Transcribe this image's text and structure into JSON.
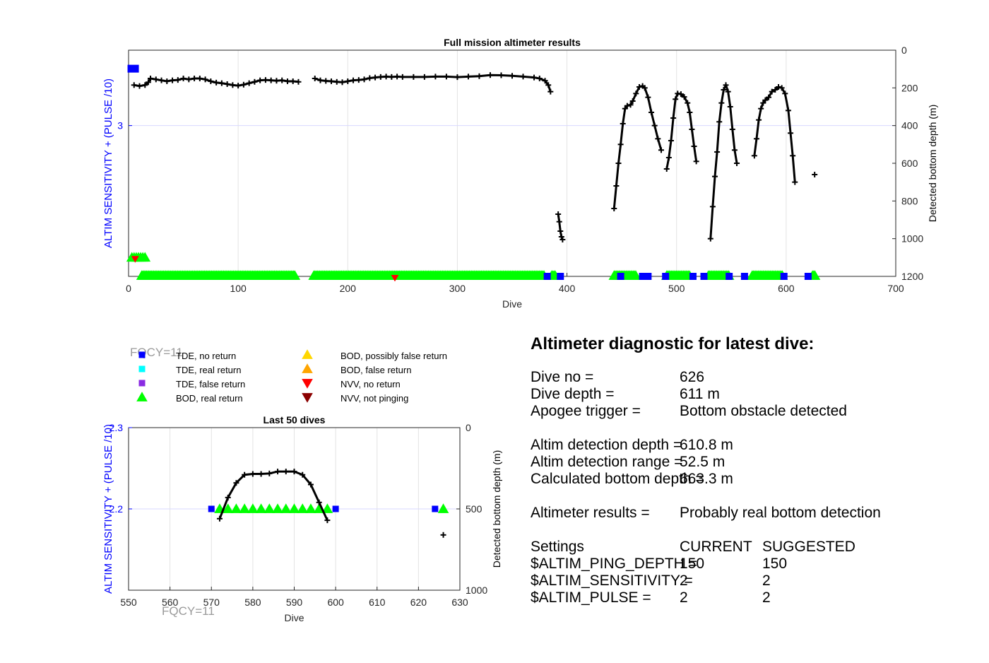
{
  "chart_data": [
    {
      "type": "scatter",
      "title": "Full mission altimeter results",
      "xlabel": "Dive",
      "ylabel_left": "ALTIM SENSITIVITY + (PULSE /10)",
      "ylabel_right": "Detected bottom depth (m)",
      "xlim": [
        0,
        700
      ],
      "xticks": [
        "0",
        "100",
        "200",
        "300",
        "400",
        "500",
        "600",
        "700"
      ],
      "ylim_left": [
        2.2,
        3.4
      ],
      "yticks_left": [
        "3"
      ],
      "ylim_right": [
        0,
        1200
      ],
      "yticks_right": [
        "0",
        "200",
        "400",
        "600",
        "800",
        "1000",
        "1200"
      ],
      "right_axis_reversed": true,
      "grid": true,
      "bottom_depth_series": [
        [
          [
            5,
            185
          ],
          [
            10,
            190
          ],
          [
            15,
            185
          ],
          [
            18,
            170
          ],
          [
            20,
            150
          ],
          [
            25,
            155
          ],
          [
            30,
            160
          ],
          [
            35,
            165
          ],
          [
            40,
            160
          ],
          [
            45,
            158
          ],
          [
            50,
            150
          ],
          [
            55,
            155
          ],
          [
            60,
            150
          ],
          [
            65,
            150
          ],
          [
            70,
            155
          ],
          [
            75,
            165
          ],
          [
            80,
            172
          ],
          [
            85,
            175
          ],
          [
            90,
            180
          ],
          [
            95,
            185
          ],
          [
            100,
            188
          ],
          [
            105,
            183
          ],
          [
            110,
            175
          ],
          [
            115,
            168
          ],
          [
            120,
            160
          ],
          [
            125,
            158
          ],
          [
            130,
            160
          ],
          [
            135,
            162
          ],
          [
            140,
            160
          ],
          [
            145,
            165
          ],
          [
            150,
            165
          ],
          [
            155,
            168
          ]
        ],
        [
          [
            170,
            150
          ],
          [
            175,
            160
          ],
          [
            180,
            163
          ],
          [
            185,
            165
          ],
          [
            190,
            168
          ],
          [
            195,
            170
          ],
          [
            200,
            165
          ],
          [
            205,
            160
          ],
          [
            210,
            158
          ],
          [
            215,
            155
          ],
          [
            220,
            148
          ],
          [
            225,
            145
          ],
          [
            230,
            142
          ],
          [
            235,
            140
          ],
          [
            240,
            142
          ],
          [
            245,
            140
          ],
          [
            250,
            142
          ],
          [
            260,
            142
          ],
          [
            270,
            142
          ],
          [
            280,
            140
          ],
          [
            290,
            140
          ],
          [
            300,
            143
          ],
          [
            310,
            140
          ],
          [
            320,
            138
          ],
          [
            330,
            132
          ],
          [
            340,
            133
          ],
          [
            350,
            136
          ],
          [
            360,
            140
          ],
          [
            370,
            145
          ],
          [
            375,
            150
          ],
          [
            380,
            162
          ],
          [
            383,
            185
          ],
          [
            385,
            220
          ]
        ],
        [
          [
            392,
            870
          ],
          [
            393,
            910
          ],
          [
            394,
            960
          ],
          [
            395,
            990
          ],
          [
            396,
            1005
          ]
        ],
        [
          [
            443,
            840
          ],
          [
            445,
            720
          ],
          [
            447,
            600
          ],
          [
            449,
            500
          ],
          [
            451,
            390
          ],
          [
            453,
            310
          ],
          [
            455,
            295
          ],
          [
            458,
            290
          ],
          [
            460,
            270
          ],
          [
            463,
            230
          ],
          [
            466,
            195
          ],
          [
            469,
            190
          ],
          [
            471,
            200
          ],
          [
            474,
            250
          ],
          [
            477,
            330
          ],
          [
            480,
            400
          ],
          [
            483,
            470
          ],
          [
            486,
            530
          ]
        ],
        [
          [
            491,
            630
          ],
          [
            493,
            570
          ],
          [
            495,
            480
          ],
          [
            497,
            360
          ],
          [
            499,
            260
          ],
          [
            501,
            230
          ],
          [
            504,
            233
          ],
          [
            507,
            248
          ],
          [
            510,
            280
          ],
          [
            512,
            330
          ],
          [
            514,
            420
          ],
          [
            516,
            510
          ],
          [
            518,
            590
          ]
        ],
        [
          [
            531,
            1000
          ],
          [
            533,
            830
          ],
          [
            535,
            670
          ],
          [
            537,
            540
          ],
          [
            539,
            380
          ],
          [
            541,
            280
          ],
          [
            543,
            210
          ],
          [
            545,
            185
          ],
          [
            547,
            220
          ],
          [
            549,
            300
          ],
          [
            551,
            420
          ],
          [
            553,
            530
          ],
          [
            555,
            600
          ]
        ],
        [
          [
            571,
            560
          ],
          [
            573,
            470
          ],
          [
            575,
            370
          ],
          [
            577,
            310
          ],
          [
            579,
            280
          ],
          [
            581,
            265
          ],
          [
            584,
            250
          ],
          [
            587,
            220
          ],
          [
            590,
            210
          ],
          [
            593,
            195
          ],
          [
            596,
            200
          ],
          [
            599,
            230
          ],
          [
            602,
            320
          ],
          [
            604,
            440
          ],
          [
            606,
            560
          ],
          [
            608,
            700
          ]
        ],
        [
          [
            626,
            660
          ]
        ]
      ],
      "series": [
        {
          "name": "TDE, no return",
          "symbol": "square",
          "color": "#0000ff",
          "points": [
            [
              1,
              3.3
            ],
            [
              382,
              2.2
            ],
            [
              394,
              2.2
            ],
            [
              449,
              2.2
            ],
            [
              469,
              2.2
            ],
            [
              474,
              2.2
            ],
            [
              490,
              2.2
            ],
            [
              515,
              2.2
            ],
            [
              525,
              2.2
            ],
            [
              548,
              2.2
            ],
            [
              562,
              2.2
            ],
            [
              598,
              2.2
            ],
            [
              620,
              2.2
            ]
          ]
        },
        {
          "name": "BOD, real return",
          "symbol": "triangle",
          "color": "#00ff00",
          "dive_ranges": [
            [
              12,
              152
            ],
            [
              169,
              380
            ],
            [
              386,
              390
            ],
            [
              443,
              463
            ],
            [
              491,
              512
            ],
            [
              529,
              548
            ],
            [
              569,
              597
            ],
            [
              624,
              627
            ]
          ],
          "early_points": [
            [
              3,
              2.3
            ],
            [
              5,
              2.3
            ],
            [
              7,
              2.3
            ],
            [
              9,
              2.3
            ],
            [
              11,
              2.3
            ],
            [
              13,
              2.3
            ],
            [
              15,
              2.3
            ]
          ]
        },
        {
          "name": "NVV, no return",
          "symbol": "triangle-down",
          "color": "#ff0000",
          "points": [
            [
              6,
              2.3
            ],
            [
              243,
              2.2
            ]
          ]
        }
      ]
    },
    {
      "type": "scatter",
      "title": "Last 50 dives",
      "xlabel": "Dive",
      "ylabel_left": "ALTIM SENSITIVITY + (PULSE /10)",
      "ylabel_right": "Detected bottom depth (m)",
      "xlim": [
        550,
        630
      ],
      "xticks": [
        "550",
        "560",
        "570",
        "580",
        "590",
        "600",
        "610",
        "620",
        "630"
      ],
      "ylim_left": [
        2.1,
        2.3
      ],
      "yticks_left": [
        "2.3",
        "2.2"
      ],
      "ylim_right": [
        0,
        1000
      ],
      "yticks_right": [
        "0",
        "500",
        "1000"
      ],
      "right_axis_reversed": true,
      "grid": true,
      "bottom_depth_series": [
        [
          [
            572,
            560
          ],
          [
            574,
            430
          ],
          [
            576,
            340
          ],
          [
            578,
            290
          ],
          [
            580,
            285
          ],
          [
            582,
            285
          ],
          [
            584,
            282
          ],
          [
            586,
            270
          ],
          [
            588,
            270
          ],
          [
            590,
            270
          ],
          [
            592,
            290
          ],
          [
            594,
            350
          ],
          [
            596,
            460
          ],
          [
            598,
            570
          ]
        ],
        [
          [
            626,
            660
          ]
        ]
      ],
      "sensitivity_points": [
        {
          "symbol": "square",
          "color": "#0000ff",
          "dives": [
            570,
            600,
            624
          ]
        },
        {
          "symbol": "triangle",
          "color": "#00ff00",
          "dives": [
            572,
            574,
            576,
            578,
            580,
            582,
            584,
            586,
            588,
            590,
            592,
            594,
            596,
            598,
            626
          ]
        }
      ]
    }
  ],
  "watermarks": [
    "FQCY=11",
    "FQCY=11"
  ],
  "legend": [
    {
      "label": "TDE, no return",
      "symbol": "square",
      "color": "#0000ff"
    },
    {
      "label": "TDE, real return",
      "symbol": "square",
      "color": "#00ffff"
    },
    {
      "label": "TDE, false return",
      "symbol": "square",
      "color": "#8a2be2"
    },
    {
      "label": "BOD, real return",
      "symbol": "triangle",
      "color": "#00ff00"
    },
    {
      "label": "BOD, possibly false return",
      "symbol": "triangle",
      "color": "#ffd700"
    },
    {
      "label": "BOD, false return",
      "symbol": "triangle",
      "color": "#ffa500"
    },
    {
      "label": "NVV, no return",
      "symbol": "triangle-down",
      "color": "#ff0000"
    },
    {
      "label": "NVV, not pinging",
      "symbol": "triangle-down",
      "color": "#8b0000"
    }
  ],
  "diagnostic": {
    "heading": "Altimeter diagnostic for latest dive:",
    "rows": [
      {
        "label": "Dive no =",
        "value": "626"
      },
      {
        "label": "Dive depth =",
        "value": "611 m"
      },
      {
        "label": "Apogee trigger =",
        "value": "Bottom obstacle detected"
      },
      {
        "label": "",
        "value": ""
      },
      {
        "label": "Altim detection depth =",
        "value": "610.8 m"
      },
      {
        "label": "Altim detection range =",
        "value": "52.5 m"
      },
      {
        "label": "Calculated bottom depth =",
        "value": "663.3 m"
      },
      {
        "label": "",
        "value": ""
      },
      {
        "label": "Altimeter results =",
        "value": "Probably real bottom detection"
      },
      {
        "label": "",
        "value": ""
      }
    ],
    "settings_header": {
      "label": "Settings",
      "current": "CURRENT",
      "suggested": "SUGGESTED"
    },
    "settings": [
      {
        "label": "$ALTIM_PING_DEPTH =",
        "current": "150",
        "suggested": "150"
      },
      {
        "label": "$ALTIM_SENSITIVITY =",
        "current": "2",
        "suggested": "2"
      },
      {
        "label": "$ALTIM_PULSE =",
        "current": "2",
        "suggested": "2"
      }
    ]
  }
}
